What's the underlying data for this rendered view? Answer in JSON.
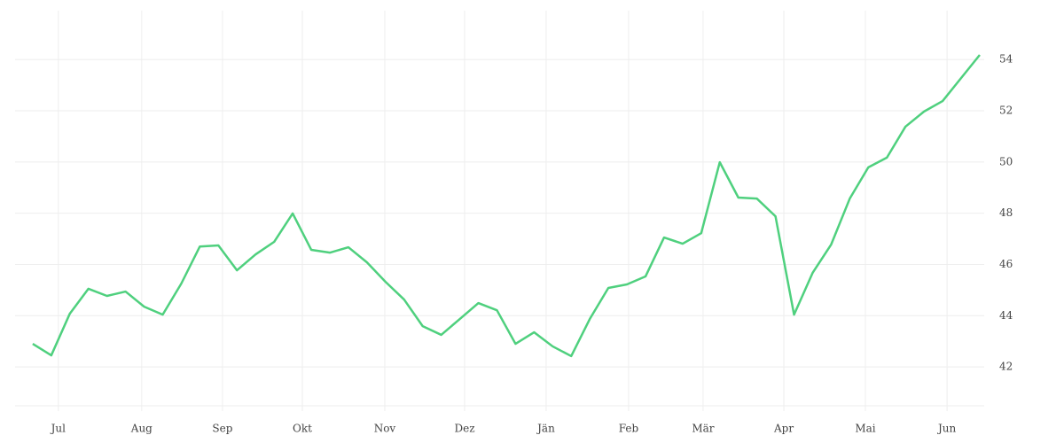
{
  "chart_data": {
    "type": "line",
    "x": [
      0,
      1,
      2,
      3,
      4,
      5,
      6,
      7,
      8,
      9,
      10,
      11,
      12,
      13,
      14,
      15,
      16,
      17,
      18,
      19,
      20,
      21,
      22,
      23,
      24,
      25,
      26,
      27,
      28,
      29,
      30,
      31,
      32,
      33,
      34,
      35,
      36,
      37,
      38,
      39,
      40,
      41,
      42,
      43,
      44,
      45,
      46,
      47,
      48,
      49,
      50,
      51
    ],
    "series": [
      {
        "name": null,
        "color": "#4fd07e",
        "values": [
          42.9,
          42.45,
          44.08,
          45.05,
          44.77,
          44.94,
          44.35,
          44.04,
          45.25,
          46.7,
          46.74,
          45.77,
          46.39,
          46.88,
          47.99,
          46.57,
          46.46,
          46.67,
          46.08,
          45.32,
          44.63,
          43.59,
          43.25,
          43.87,
          44.49,
          44.21,
          42.9,
          43.35,
          42.8,
          42.42,
          43.87,
          45.08,
          45.22,
          45.53,
          47.05,
          46.81,
          47.22,
          49.99,
          48.61,
          48.57,
          47.88,
          44.04,
          45.67,
          46.78,
          48.57,
          49.79,
          50.17,
          51.38,
          51.97,
          52.38,
          53.28,
          54.18
        ]
      }
    ],
    "xlim": [
      -0.95,
      51.24
    ],
    "xticks": [
      {
        "value": 1.38,
        "label": "Jul"
      },
      {
        "value": 5.87,
        "label": "Aug"
      },
      {
        "value": 10.22,
        "label": "Sep"
      },
      {
        "value": 14.52,
        "label": "Okt"
      },
      {
        "value": 18.96,
        "label": "Nov"
      },
      {
        "value": 23.26,
        "label": "Dez"
      },
      {
        "value": 27.65,
        "label": "Jän"
      },
      {
        "value": 32.09,
        "label": "Feb"
      },
      {
        "value": 36.1,
        "label": "Mär"
      },
      {
        "value": 40.45,
        "label": "Apr"
      },
      {
        "value": 44.84,
        "label": "Mai"
      },
      {
        "value": 49.24,
        "label": "Jun"
      }
    ],
    "ylim": [
      40.48,
      55.91
    ],
    "yticks": [
      42,
      44,
      46,
      48,
      50,
      52,
      54
    ],
    "grid": true
  }
}
